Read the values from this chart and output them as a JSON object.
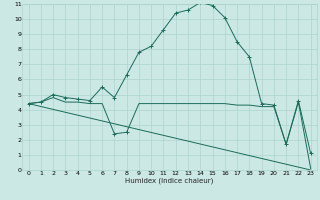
{
  "xlabel": "Humidex (Indice chaleur)",
  "xlim": [
    -0.5,
    23.5
  ],
  "ylim": [
    0,
    11
  ],
  "xticks": [
    0,
    1,
    2,
    3,
    4,
    5,
    6,
    7,
    8,
    9,
    10,
    11,
    12,
    13,
    14,
    15,
    16,
    17,
    18,
    19,
    20,
    21,
    22,
    23
  ],
  "yticks": [
    0,
    1,
    2,
    3,
    4,
    5,
    6,
    7,
    8,
    9,
    10,
    11
  ],
  "bg_color": "#cce8e4",
  "line_color": "#1a6b5a",
  "grid_color": "#aad4cc",
  "line1_x": [
    0,
    1,
    2,
    3,
    4,
    5,
    6,
    7,
    8,
    9,
    10,
    11,
    12,
    13,
    14,
    15,
    16,
    17,
    18,
    19,
    20,
    21,
    22,
    23
  ],
  "line1_y": [
    4.4,
    4.5,
    5.0,
    4.8,
    4.7,
    4.6,
    5.5,
    4.8,
    6.3,
    7.8,
    8.2,
    9.3,
    10.4,
    10.6,
    11.1,
    10.9,
    10.1,
    8.5,
    7.5,
    4.4,
    4.3,
    1.7,
    4.6,
    1.1
  ],
  "line2_x": [
    0,
    1,
    2,
    3,
    4,
    5,
    6,
    7,
    8,
    9,
    10,
    11,
    12,
    13,
    14,
    15,
    16,
    17,
    18,
    19,
    20,
    21,
    22,
    23
  ],
  "line2_y": [
    4.4,
    4.5,
    4.8,
    4.5,
    4.5,
    4.4,
    4.4,
    2.4,
    2.5,
    4.4,
    4.4,
    4.4,
    4.4,
    4.4,
    4.4,
    4.4,
    4.4,
    4.3,
    4.3,
    4.2,
    4.2,
    1.7,
    4.5,
    0.1
  ],
  "line3_x": [
    0,
    23
  ],
  "line3_y": [
    4.4,
    0.0
  ],
  "markers_x": [
    0,
    1,
    2,
    3,
    4,
    5,
    6,
    7,
    8,
    9,
    10,
    11,
    12,
    13,
    14,
    15,
    16,
    17,
    18,
    19,
    20,
    21,
    22,
    23,
    7,
    8
  ],
  "markers_y": [
    4.4,
    4.5,
    5.0,
    4.8,
    4.7,
    4.6,
    5.5,
    4.8,
    6.3,
    7.8,
    8.2,
    9.3,
    10.4,
    10.6,
    11.1,
    10.9,
    10.1,
    8.5,
    7.5,
    4.4,
    4.3,
    1.7,
    4.6,
    1.1,
    2.4,
    2.5
  ]
}
